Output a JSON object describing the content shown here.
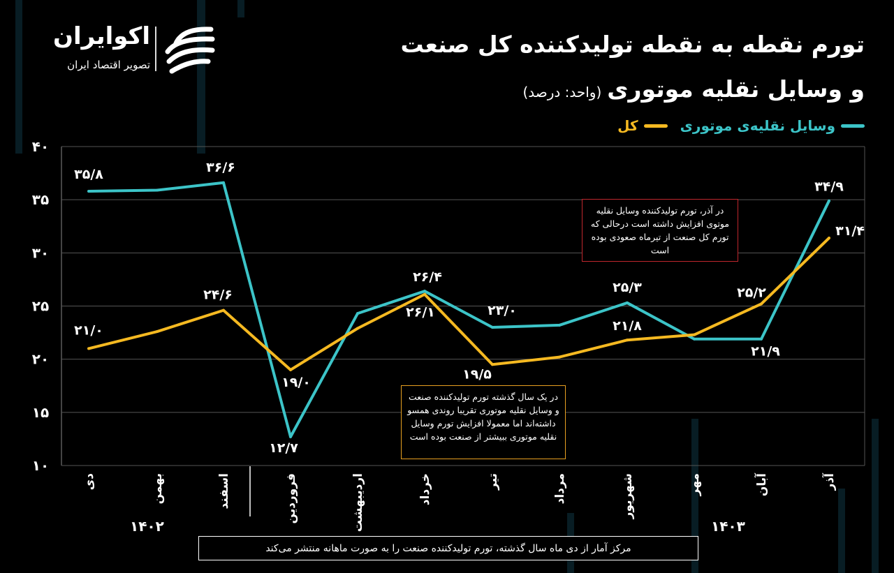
{
  "logo": {
    "name": "اکوایران",
    "subtitle": "تصویر اقتصاد ایران"
  },
  "header": {
    "title_line1": "تورم نقطه به نقطه تولیدکننده کل صنعت",
    "title_line2": "و وسایل نقلیه موتوری",
    "unit": "(واحد: درصد)"
  },
  "colors": {
    "vehicles": "#3cc4c8",
    "total": "#f5b921",
    "background": "#000000"
  },
  "chart_data": {
    "type": "line",
    "categories": [
      "دی",
      "بهمن",
      "اسفند",
      "فروردین",
      "اردیبهشت",
      "خرداد",
      "تیر",
      "مرداد",
      "شهریور",
      "مهر",
      "آبان",
      "آذر"
    ],
    "year_labels": [
      {
        "label": "۱۴۰۲"
      },
      {
        "label": "۱۴۰۳"
      }
    ],
    "yticks": [
      {
        "v": 40,
        "label": "۴۰"
      },
      {
        "v": 35,
        "label": "۳۵"
      },
      {
        "v": 30,
        "label": "۳۰"
      },
      {
        "v": 25,
        "label": "۲۵"
      },
      {
        "v": 20,
        "label": "۲۰"
      },
      {
        "v": 15,
        "label": "۱۵"
      },
      {
        "v": 10,
        "label": "۱۰"
      }
    ],
    "ylim": [
      10,
      40
    ],
    "grid": true,
    "legend_position": "top-right",
    "series": [
      {
        "name": "وسایل نقلیه‌ی موتوری",
        "color": "#3cc4c8",
        "values": [
          35.8,
          35.9,
          36.6,
          12.7,
          24.3,
          26.4,
          23.0,
          23.2,
          25.3,
          21.9,
          21.9,
          34.9
        ],
        "labels": [
          "۳۵/۸",
          null,
          "۳۶/۶",
          "۱۲/۷",
          null,
          "۲۶/۴",
          "۲۳/۰",
          null,
          "۲۵/۳",
          null,
          "۲۱/۹",
          "۳۴/۹"
        ]
      },
      {
        "name": "کل",
        "color": "#f5b921",
        "values": [
          21.0,
          22.6,
          24.6,
          19.0,
          22.9,
          26.1,
          19.5,
          20.2,
          21.8,
          22.3,
          25.2,
          31.4
        ],
        "labels": [
          "۲۱/۰",
          null,
          "۲۴/۶",
          "۱۹/۰",
          null,
          "۲۶/۱",
          "۱۹/۵",
          null,
          "۲۱/۸",
          null,
          "۲۵/۲",
          "۳۱/۴"
        ]
      }
    ],
    "annotations": [
      "در آذر، تورم تولیدکننده وسایل نقلیه موتوی افزایش داشته است درحالی که تورم کل صنعت از تیرماه صعودی بوده است",
      "در یک سال گذشته تورم تولیدکننده صنعت و وسایل نقلیه موتوری تقریبا روندی همسو داشته‌اند اما معمولا افزایش تورم وسایل نقلیه موتوری ببیشتر از صنعت بوده است"
    ]
  },
  "footnote": "مرکز آمار از دی ماه سال گذشته، تورم تولیدکننده صنعت را به صورت ماهانه منتشر می‌کند"
}
